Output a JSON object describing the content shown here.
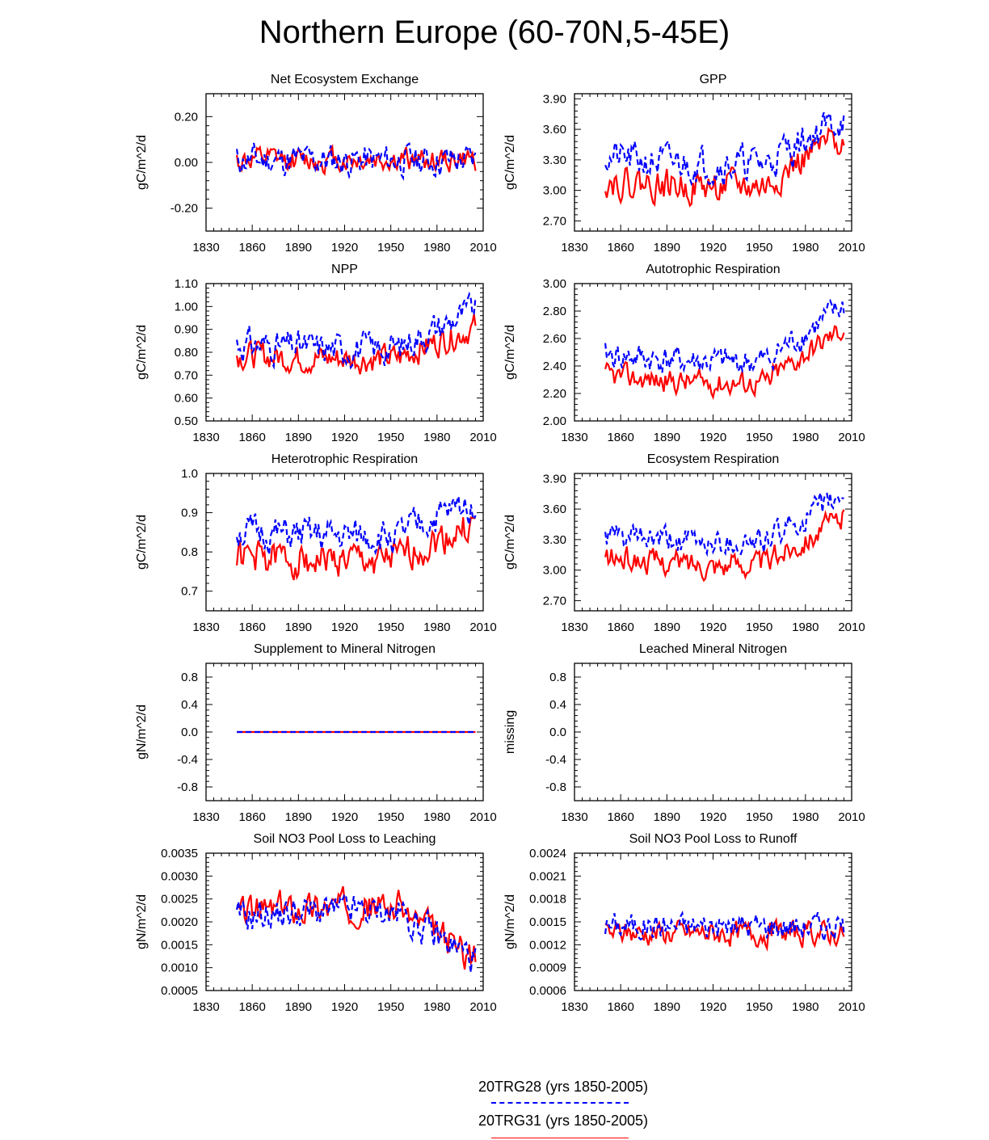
{
  "title": "Northern Europe (60-70N,5-45E)",
  "colors": {
    "series_a": "#0000ff",
    "series_b": "#ff0000",
    "frame": "#000000"
  },
  "legend": [
    {
      "label": "20TRG28 (yrs 1850-2005)",
      "color": "#0000ff",
      "dash": "dashed"
    },
    {
      "label": "20TRG31 (yrs 1850-2005)",
      "color": "#ff0000",
      "dash": "solid"
    }
  ],
  "chart_data": [
    {
      "type": "line",
      "title": "Net Ecosystem Exchange",
      "ylabel": "gC/m^2/d",
      "xlim": [
        1830,
        2010
      ],
      "ylim": [
        -0.3,
        0.3
      ],
      "xticks": [
        1830,
        1860,
        1890,
        1920,
        1950,
        1980,
        2010
      ],
      "yticks": [
        -0.2,
        0.0,
        0.2
      ],
      "ytick_labels": [
        "-0.20",
        "0.00",
        "0.20"
      ],
      "series": [
        {
          "name": "20TRG28",
          "mean": 0.01,
          "amp": 0.08,
          "trend": 0,
          "seed": 11
        },
        {
          "name": "20TRG31",
          "mean": 0.01,
          "amp": 0.06,
          "trend": 0,
          "seed": 12
        }
      ]
    },
    {
      "type": "line",
      "title": "GPP",
      "ylabel": "gC/m^2/d",
      "xlim": [
        1830,
        2010
      ],
      "ylim": [
        2.6,
        3.95
      ],
      "xticks": [
        1830,
        1860,
        1890,
        1920,
        1950,
        1980,
        2010
      ],
      "yticks": [
        2.7,
        3.0,
        3.3,
        3.6,
        3.9
      ],
      "ytick_labels": [
        "2.70",
        "3.00",
        "3.30",
        "3.60",
        "3.90"
      ],
      "series": [
        {
          "name": "20TRG28",
          "mean": 3.32,
          "amp": 0.2,
          "trend": 0.4,
          "seed": 21
        },
        {
          "name": "20TRG31",
          "mean": 3.1,
          "amp": 0.18,
          "trend": 0.45,
          "seed": 22
        }
      ]
    },
    {
      "type": "line",
      "title": "NPP",
      "ylabel": "gC/m^2/d",
      "xlim": [
        1830,
        2010
      ],
      "ylim": [
        0.5,
        1.1
      ],
      "xticks": [
        1830,
        1860,
        1890,
        1920,
        1950,
        1980,
        2010
      ],
      "yticks": [
        0.5,
        0.6,
        0.7,
        0.8,
        0.9,
        1.0,
        1.1
      ],
      "ytick_labels": [
        "0.50",
        "0.60",
        "0.70",
        "0.80",
        "0.90",
        "1.00",
        "1.10"
      ],
      "series": [
        {
          "name": "20TRG28",
          "mean": 0.84,
          "amp": 0.08,
          "trend": 0.15,
          "seed": 31
        },
        {
          "name": "20TRG31",
          "mean": 0.79,
          "amp": 0.07,
          "trend": 0.12,
          "seed": 32
        }
      ]
    },
    {
      "type": "line",
      "title": "Autotrophic Respiration",
      "ylabel": "gC/m^2/d",
      "xlim": [
        1830,
        2010
      ],
      "ylim": [
        2.0,
        3.0
      ],
      "xticks": [
        1830,
        1860,
        1890,
        1920,
        1950,
        1980,
        2010
      ],
      "yticks": [
        2.0,
        2.2,
        2.4,
        2.6,
        2.8,
        3.0
      ],
      "ytick_labels": [
        "2.00",
        "2.20",
        "2.40",
        "2.60",
        "2.80",
        "3.00"
      ],
      "series": [
        {
          "name": "20TRG28",
          "mean": 2.48,
          "amp": 0.12,
          "trend": 0.35,
          "seed": 41
        },
        {
          "name": "20TRG31",
          "mean": 2.33,
          "amp": 0.1,
          "trend": 0.35,
          "seed": 42
        }
      ]
    },
    {
      "type": "line",
      "title": "Heterotrophic Respiration",
      "ylabel": "gC/m^2/d",
      "xlim": [
        1830,
        2010
      ],
      "ylim": [
        0.65,
        1.0
      ],
      "xticks": [
        1830,
        1860,
        1890,
        1920,
        1950,
        1980,
        2010
      ],
      "yticks": [
        0.7,
        0.8,
        0.9,
        1.0
      ],
      "ytick_labels": [
        "0.7",
        "0.8",
        "0.9",
        "1.0"
      ],
      "series": [
        {
          "name": "20TRG28",
          "mean": 0.85,
          "amp": 0.05,
          "trend": 0.08,
          "seed": 51
        },
        {
          "name": "20TRG31",
          "mean": 0.79,
          "amp": 0.05,
          "trend": 0.08,
          "seed": 52
        }
      ]
    },
    {
      "type": "line",
      "title": "Ecosystem Respiration",
      "ylabel": "gC/m^2/d",
      "xlim": [
        1830,
        2010
      ],
      "ylim": [
        2.6,
        3.95
      ],
      "xticks": [
        1830,
        1860,
        1890,
        1920,
        1950,
        1980,
        2010
      ],
      "yticks": [
        2.7,
        3.0,
        3.3,
        3.6,
        3.9
      ],
      "ytick_labels": [
        "2.70",
        "3.00",
        "3.30",
        "3.60",
        "3.90"
      ],
      "series": [
        {
          "name": "20TRG28",
          "mean": 3.33,
          "amp": 0.15,
          "trend": 0.4,
          "seed": 61
        },
        {
          "name": "20TRG31",
          "mean": 3.12,
          "amp": 0.14,
          "trend": 0.4,
          "seed": 62
        }
      ]
    },
    {
      "type": "line",
      "title": "Supplement to Mineral Nitrogen",
      "ylabel": "gN/m^2/d",
      "xlim": [
        1830,
        2010
      ],
      "ylim": [
        -1.0,
        1.0
      ],
      "xticks": [
        1830,
        1860,
        1890,
        1920,
        1950,
        1980,
        2010
      ],
      "yticks": [
        -0.8,
        -0.4,
        0.0,
        0.4,
        0.8
      ],
      "ytick_labels": [
        "-0.8",
        "-0.4",
        "0.0",
        "0.4",
        "0.8"
      ],
      "series": [
        {
          "name": "20TRG28",
          "mean": 0.0,
          "amp": 0,
          "trend": 0,
          "seed": 71
        },
        {
          "name": "20TRG31",
          "mean": 0.0,
          "amp": 0,
          "trend": 0,
          "seed": 72
        }
      ]
    },
    {
      "type": "line",
      "title": "Leached Mineral Nitrogen",
      "ylabel": "missing",
      "xlim": [
        1830,
        2010
      ],
      "ylim": [
        -1.0,
        1.0
      ],
      "xticks": [
        1830,
        1860,
        1890,
        1920,
        1950,
        1980,
        2010
      ],
      "yticks": [
        -0.8,
        -0.4,
        0.0,
        0.4,
        0.8
      ],
      "ytick_labels": [
        "-0.8",
        "-0.4",
        "0.0",
        "0.4",
        "0.8"
      ],
      "series": []
    },
    {
      "type": "line",
      "title": "Soil NO3 Pool Loss to Leaching",
      "ylabel": "gN/m^2/d",
      "xlim": [
        1830,
        2010
      ],
      "ylim": [
        0.0005,
        0.0035
      ],
      "xticks": [
        1830,
        1860,
        1890,
        1920,
        1950,
        1980,
        2010
      ],
      "yticks": [
        0.0005,
        0.001,
        0.0015,
        0.002,
        0.0025,
        0.003,
        0.0035
      ],
      "ytick_labels": [
        "0.0005",
        "0.0010",
        "0.0015",
        "0.0020",
        "0.0025",
        "0.0030",
        "0.0035"
      ],
      "series": [
        {
          "name": "20TRG28",
          "mean": 0.0021,
          "amp": 0.0004,
          "trend": -0.0009,
          "seed": 91
        },
        {
          "name": "20TRG31",
          "mean": 0.0022,
          "amp": 0.0004,
          "trend": -0.001,
          "seed": 92
        }
      ]
    },
    {
      "type": "line",
      "title": "Soil NO3 Pool Loss to Runoff",
      "ylabel": "gN/m^2/d",
      "xlim": [
        1830,
        2010
      ],
      "ylim": [
        0.0006,
        0.0024
      ],
      "xticks": [
        1830,
        1860,
        1890,
        1920,
        1950,
        1980,
        2010
      ],
      "yticks": [
        0.0006,
        0.0009,
        0.0012,
        0.0015,
        0.0018,
        0.0021,
        0.0024
      ],
      "ytick_labels": [
        "0.0006",
        "0.0009",
        "0.0012",
        "0.0015",
        "0.0018",
        "0.0021",
        "0.0024"
      ],
      "series": [
        {
          "name": "20TRG28",
          "mean": 0.00145,
          "amp": 0.0002,
          "trend": 0,
          "seed": 101
        },
        {
          "name": "20TRG31",
          "mean": 0.00135,
          "amp": 0.00018,
          "trend": 0,
          "seed": 102
        }
      ]
    }
  ]
}
